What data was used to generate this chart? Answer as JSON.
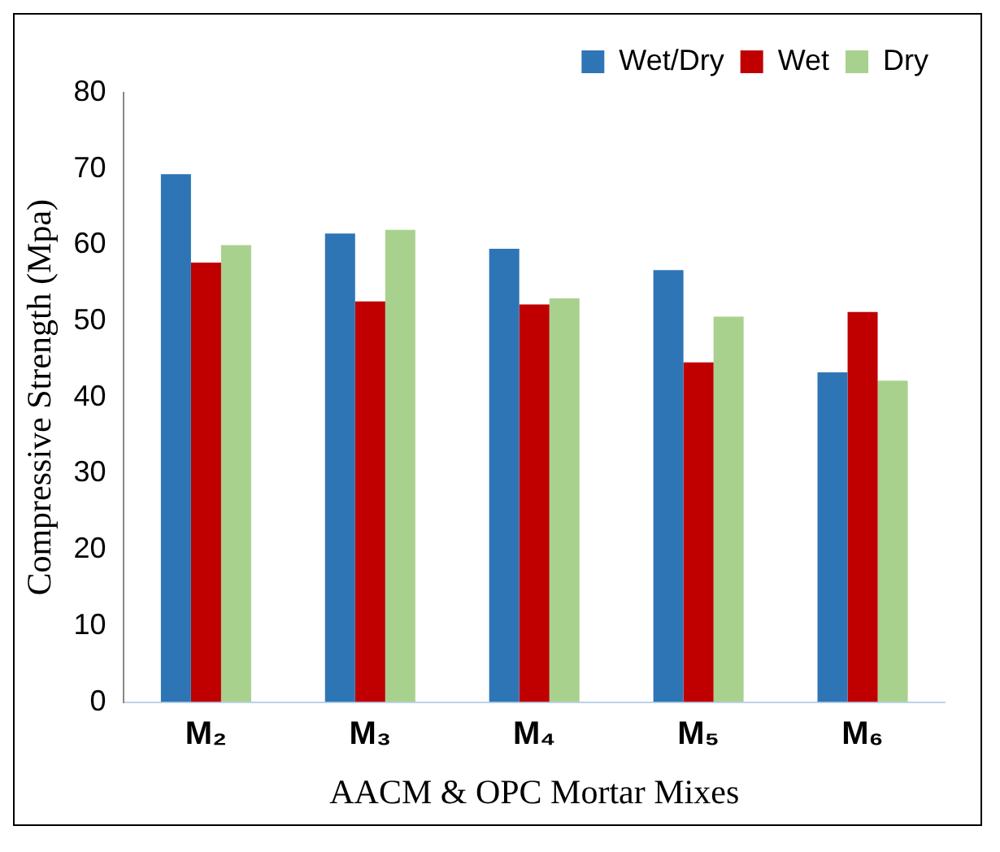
{
  "chart_data": {
    "type": "bar",
    "xlabel": "AACM & OPC Mortar Mixes",
    "ylabel": "Compressive Strength (Mpa)",
    "categories": [
      "M₂",
      "M₃",
      "M₄",
      "M₅",
      "M₆"
    ],
    "series": [
      {
        "name": "Wet/Dry",
        "color": "#2e75b6",
        "values": [
          69.3,
          61.5,
          59.5,
          56.7,
          43.3
        ]
      },
      {
        "name": "Wet",
        "color": "#c00000",
        "values": [
          57.7,
          52.6,
          52.2,
          44.6,
          51.2
        ]
      },
      {
        "name": "Dry",
        "color": "#a9d18e",
        "values": [
          60.0,
          62.0,
          53.0,
          50.6,
          42.2
        ]
      }
    ],
    "ylim": [
      0,
      80
    ],
    "yticks": [
      0,
      10,
      20,
      30,
      40,
      50,
      60,
      70,
      80
    ],
    "grid": false,
    "legend": "top"
  }
}
